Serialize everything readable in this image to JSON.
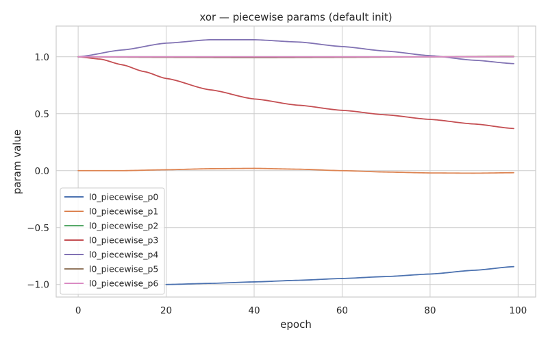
{
  "chart_data": {
    "type": "line",
    "title": "xor — piecewise params (default init)",
    "xlabel": "epoch",
    "ylabel": "param value",
    "xlim": [
      -5,
      104
    ],
    "ylim": [
      -1.11,
      1.27
    ],
    "xticks": [
      0,
      20,
      40,
      60,
      80,
      100
    ],
    "xtick_labels": [
      "0",
      "20",
      "40",
      "60",
      "80",
      "100"
    ],
    "yticks": [
      1.0,
      0.5,
      0.0,
      -0.5,
      -1.0
    ],
    "ytick_labels": [
      "1.0",
      "0.5",
      "0.0",
      "−0.5",
      "−1.0"
    ],
    "grid": true,
    "legend_position": "lower-left",
    "series": [
      {
        "name": "l0_piecewise_p0",
        "color": "#4c72b0",
        "x": [
          20,
          30,
          40,
          50,
          60,
          70,
          80,
          90,
          99
        ],
        "y": [
          -1.0,
          -0.99,
          -0.977,
          -0.963,
          -0.947,
          -0.93,
          -0.908,
          -0.875,
          -0.843
        ]
      },
      {
        "name": "l0_piecewise_p1",
        "color": "#dd8452",
        "x": [
          0,
          10,
          20,
          30,
          40,
          50,
          60,
          70,
          80,
          90,
          99
        ],
        "y": [
          0.0,
          0.0,
          0.008,
          0.017,
          0.02,
          0.013,
          0.0,
          -0.012,
          -0.02,
          -0.022,
          -0.018
        ]
      },
      {
        "name": "l0_piecewise_p2",
        "color": "#55a868",
        "x": [
          0,
          20,
          40,
          60,
          80,
          99
        ],
        "y": [
          1.0,
          1.0,
          1.0,
          1.0,
          1.0,
          1.0
        ]
      },
      {
        "name": "l0_piecewise_p3",
        "color": "#c44e52",
        "x": [
          0,
          5,
          10,
          15,
          20,
          30,
          40,
          50,
          60,
          70,
          80,
          90,
          99
        ],
        "y": [
          1.0,
          0.98,
          0.93,
          0.87,
          0.81,
          0.71,
          0.63,
          0.575,
          0.53,
          0.49,
          0.45,
          0.41,
          0.37
        ]
      },
      {
        "name": "l0_piecewise_p4",
        "color": "#8172b3",
        "x": [
          0,
          10,
          20,
          30,
          40,
          50,
          60,
          70,
          80,
          90,
          99
        ],
        "y": [
          1.0,
          1.06,
          1.12,
          1.15,
          1.15,
          1.13,
          1.09,
          1.05,
          1.01,
          0.97,
          0.94
        ]
      },
      {
        "name": "l0_piecewise_p5",
        "color": "#937860",
        "x": [
          0,
          20,
          40,
          60,
          80,
          99
        ],
        "y": [
          1.0,
          0.995,
          0.992,
          0.995,
          1.0,
          1.005
        ]
      },
      {
        "name": "l0_piecewise_p6",
        "color": "#da8bc3",
        "x": [
          0,
          20,
          40,
          60,
          80,
          99
        ],
        "y": [
          1.0,
          1.0,
          1.0,
          1.0,
          1.0,
          1.0
        ]
      }
    ]
  }
}
